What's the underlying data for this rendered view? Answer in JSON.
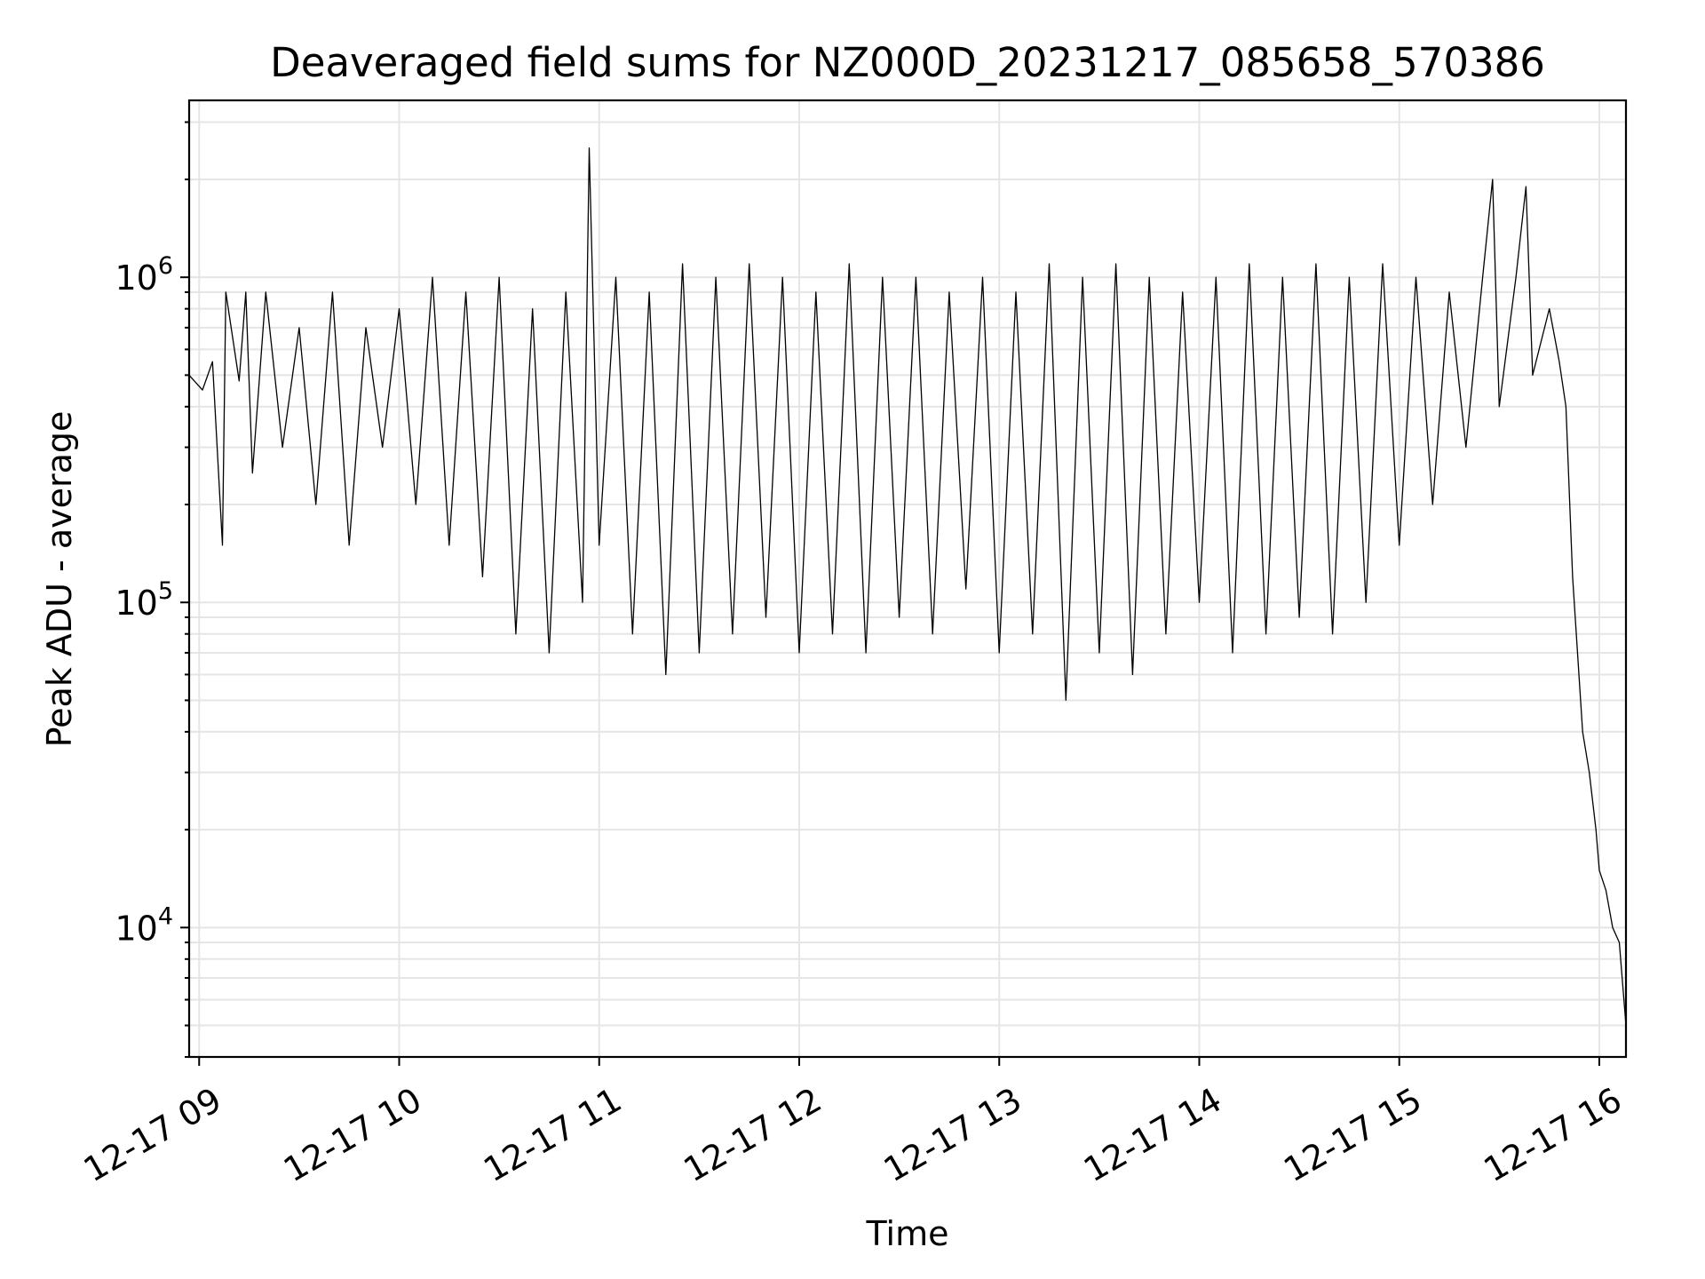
{
  "chart_data": {
    "type": "line",
    "title": "Deaveraged field sums for NZ000D_20231217_085658_570386",
    "xlabel": "Time",
    "ylabel": "Peak ADU - average",
    "yscale": "log",
    "xlim": [
      "2023-12-17 08:57",
      "2023-12-17 16:08"
    ],
    "ylim": [
      4000,
      3500000
    ],
    "grid": true,
    "legend": "none",
    "line_color": "#000000",
    "x_ticks": [
      {
        "value": "2023-12-17 09:00",
        "label": "12-17 09"
      },
      {
        "value": "2023-12-17 10:00",
        "label": "12-17 10"
      },
      {
        "value": "2023-12-17 11:00",
        "label": "12-17 11"
      },
      {
        "value": "2023-12-17 12:00",
        "label": "12-17 12"
      },
      {
        "value": "2023-12-17 13:00",
        "label": "12-17 13"
      },
      {
        "value": "2023-12-17 14:00",
        "label": "12-17 14"
      },
      {
        "value": "2023-12-17 15:00",
        "label": "12-17 15"
      },
      {
        "value": "2023-12-17 16:00",
        "label": "12-17 16"
      }
    ],
    "y_ticks": [
      {
        "value": 10000,
        "base": "10",
        "exp": "4"
      },
      {
        "value": 100000,
        "base": "10",
        "exp": "5"
      },
      {
        "value": 1000000,
        "base": "10",
        "exp": "6"
      }
    ],
    "series": [
      {
        "x": [
          "2023-12-17 08:57",
          "2023-12-17 09:01",
          "2023-12-17 09:04",
          "2023-12-17 09:07",
          "2023-12-17 09:08",
          "2023-12-17 09:12",
          "2023-12-17 09:14",
          "2023-12-17 09:16",
          "2023-12-17 09:20",
          "2023-12-17 09:25",
          "2023-12-17 09:30",
          "2023-12-17 09:35",
          "2023-12-17 09:40",
          "2023-12-17 09:45",
          "2023-12-17 09:50",
          "2023-12-17 09:55",
          "2023-12-17 10:00",
          "2023-12-17 10:05",
          "2023-12-17 10:10",
          "2023-12-17 10:15",
          "2023-12-17 10:20",
          "2023-12-17 10:25",
          "2023-12-17 10:30",
          "2023-12-17 10:35",
          "2023-12-17 10:40",
          "2023-12-17 10:45",
          "2023-12-17 10:50",
          "2023-12-17 10:55",
          "2023-12-17 10:57",
          "2023-12-17 11:00",
          "2023-12-17 11:05",
          "2023-12-17 11:10",
          "2023-12-17 11:15",
          "2023-12-17 11:20",
          "2023-12-17 11:25",
          "2023-12-17 11:30",
          "2023-12-17 11:35",
          "2023-12-17 11:40",
          "2023-12-17 11:45",
          "2023-12-17 11:50",
          "2023-12-17 11:55",
          "2023-12-17 12:00",
          "2023-12-17 12:05",
          "2023-12-17 12:10",
          "2023-12-17 12:15",
          "2023-12-17 12:20",
          "2023-12-17 12:25",
          "2023-12-17 12:30",
          "2023-12-17 12:35",
          "2023-12-17 12:40",
          "2023-12-17 12:45",
          "2023-12-17 12:50",
          "2023-12-17 12:55",
          "2023-12-17 13:00",
          "2023-12-17 13:05",
          "2023-12-17 13:10",
          "2023-12-17 13:15",
          "2023-12-17 13:20",
          "2023-12-17 13:25",
          "2023-12-17 13:30",
          "2023-12-17 13:35",
          "2023-12-17 13:40",
          "2023-12-17 13:45",
          "2023-12-17 13:50",
          "2023-12-17 13:55",
          "2023-12-17 14:00",
          "2023-12-17 14:05",
          "2023-12-17 14:10",
          "2023-12-17 14:15",
          "2023-12-17 14:20",
          "2023-12-17 14:25",
          "2023-12-17 14:30",
          "2023-12-17 14:35",
          "2023-12-17 14:40",
          "2023-12-17 14:45",
          "2023-12-17 14:50",
          "2023-12-17 14:55",
          "2023-12-17 15:00",
          "2023-12-17 15:05",
          "2023-12-17 15:10",
          "2023-12-17 15:15",
          "2023-12-17 15:20",
          "2023-12-17 15:25",
          "2023-12-17 15:28",
          "2023-12-17 15:30",
          "2023-12-17 15:35",
          "2023-12-17 15:38",
          "2023-12-17 15:40",
          "2023-12-17 15:45",
          "2023-12-17 15:48",
          "2023-12-17 15:50",
          "2023-12-17 15:52",
          "2023-12-17 15:55",
          "2023-12-17 15:57",
          "2023-12-17 15:59",
          "2023-12-17 16:00",
          "2023-12-17 16:02",
          "2023-12-17 16:04",
          "2023-12-17 16:06",
          "2023-12-17 16:08"
        ],
        "y": [
          500000,
          450000,
          550000,
          150000,
          900000,
          480000,
          900000,
          250000,
          900000,
          300000,
          700000,
          200000,
          900000,
          150000,
          700000,
          300000,
          800000,
          200000,
          1000000,
          150000,
          900000,
          120000,
          1000000,
          80000,
          800000,
          70000,
          900000,
          100000,
          2500000,
          150000,
          1000000,
          80000,
          900000,
          60000,
          1100000,
          70000,
          1000000,
          80000,
          1100000,
          90000,
          1000000,
          70000,
          900000,
          80000,
          1100000,
          70000,
          1000000,
          90000,
          1000000,
          80000,
          900000,
          110000,
          1000000,
          70000,
          900000,
          80000,
          1100000,
          50000,
          1000000,
          70000,
          1100000,
          60000,
          1000000,
          80000,
          900000,
          100000,
          1000000,
          70000,
          1100000,
          80000,
          1000000,
          90000,
          1100000,
          80000,
          1000000,
          100000,
          1100000,
          150000,
          1000000,
          200000,
          900000,
          300000,
          1000000,
          2000000,
          400000,
          1000000,
          1900000,
          500000,
          800000,
          550000,
          400000,
          120000,
          40000,
          30000,
          20000,
          15000,
          13000,
          10000,
          9000,
          5000
        ]
      }
    ]
  }
}
